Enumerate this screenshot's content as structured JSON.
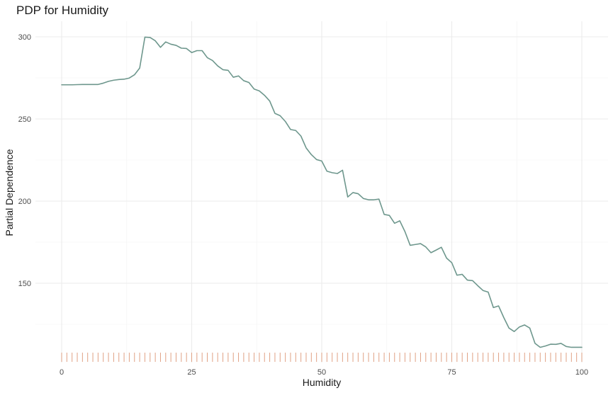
{
  "chart_data": {
    "type": "line",
    "title": "PDP for Humidity",
    "xlabel": "Humidity",
    "ylabel": "Partial Dependence",
    "xlim": [
      0,
      100
    ],
    "ylim": [
      107,
      308
    ],
    "x_ticks": [
      0,
      25,
      50,
      75,
      100
    ],
    "y_ticks": [
      150,
      200,
      250,
      300
    ],
    "grid": true,
    "legend": "none",
    "colors": {
      "line": "#6e978d",
      "rug": "#e0a184"
    },
    "series": [
      {
        "x": [
          0,
          1,
          2,
          3,
          4,
          5,
          6,
          7,
          8,
          9,
          10,
          11,
          12,
          13,
          14,
          15,
          16,
          17,
          18,
          19,
          20,
          21,
          22,
          23,
          24,
          25,
          26,
          27,
          28,
          29,
          30,
          31,
          32,
          33,
          34,
          35,
          36,
          37,
          38,
          39,
          40,
          41,
          42,
          43,
          44,
          45,
          46,
          47,
          48,
          49,
          50,
          51,
          52,
          53,
          54,
          55,
          56,
          57,
          58,
          59,
          60,
          61,
          62,
          63,
          64,
          65,
          66,
          67,
          68,
          69,
          70,
          71,
          72,
          73,
          74,
          75,
          76,
          77,
          78,
          79,
          80,
          81,
          82,
          83,
          84,
          85,
          86,
          87,
          88,
          89,
          90,
          91,
          92,
          93,
          94,
          95,
          96,
          97,
          98,
          99,
          100
        ],
        "y": [
          270.8,
          270.8,
          270.8,
          270.9,
          271.0,
          271.0,
          271.0,
          271.0,
          271.8,
          272.9,
          273.6,
          274.0,
          274.2,
          274.9,
          276.9,
          281.0,
          299.8,
          299.6,
          297.6,
          293.6,
          296.9,
          295.5,
          294.8,
          293.1,
          292.9,
          290.4,
          291.6,
          291.6,
          287.3,
          285.6,
          282.3,
          280.0,
          279.6,
          275.4,
          276.2,
          273.3,
          272.2,
          268.2,
          267.1,
          264.4,
          260.9,
          253.4,
          252.0,
          248.5,
          243.6,
          243.0,
          239.6,
          232.4,
          228.3,
          225.3,
          224.4,
          218.2,
          217.3,
          216.8,
          218.8,
          202.5,
          205.2,
          204.5,
          201.6,
          200.8,
          200.8,
          201.2,
          191.9,
          191.3,
          186.5,
          188.0,
          181.4,
          173.1,
          173.6,
          174.1,
          172.1,
          168.6,
          170.2,
          171.9,
          165.3,
          162.5,
          154.9,
          155.4,
          151.9,
          151.6,
          148.5,
          145.6,
          144.6,
          135.2,
          136.2,
          129.1,
          122.7,
          120.6,
          123.4,
          124.6,
          122.7,
          113.4,
          111.0,
          111.8,
          112.9,
          112.8,
          113.4,
          111.5,
          111.0,
          111.0,
          111.0
        ]
      }
    ],
    "rug_x": [
      0,
      1,
      2,
      3,
      4,
      5,
      6,
      7,
      8,
      9,
      10,
      11,
      12,
      13,
      14,
      15,
      16,
      17,
      18,
      19,
      20,
      21,
      22,
      23,
      24,
      25,
      26,
      27,
      28,
      29,
      30,
      31,
      32,
      33,
      34,
      35,
      36,
      37,
      38,
      39,
      40,
      41,
      42,
      43,
      44,
      45,
      46,
      47,
      48,
      49,
      50,
      51,
      52,
      53,
      54,
      55,
      56,
      57,
      58,
      59,
      60,
      61,
      62,
      63,
      64,
      65,
      66,
      67,
      68,
      69,
      70,
      71,
      72,
      73,
      74,
      75,
      76,
      77,
      78,
      79,
      80,
      81,
      82,
      83,
      84,
      85,
      86,
      87,
      88,
      89,
      90,
      91,
      92,
      93,
      94,
      95,
      96,
      97,
      98,
      99,
      100
    ]
  }
}
